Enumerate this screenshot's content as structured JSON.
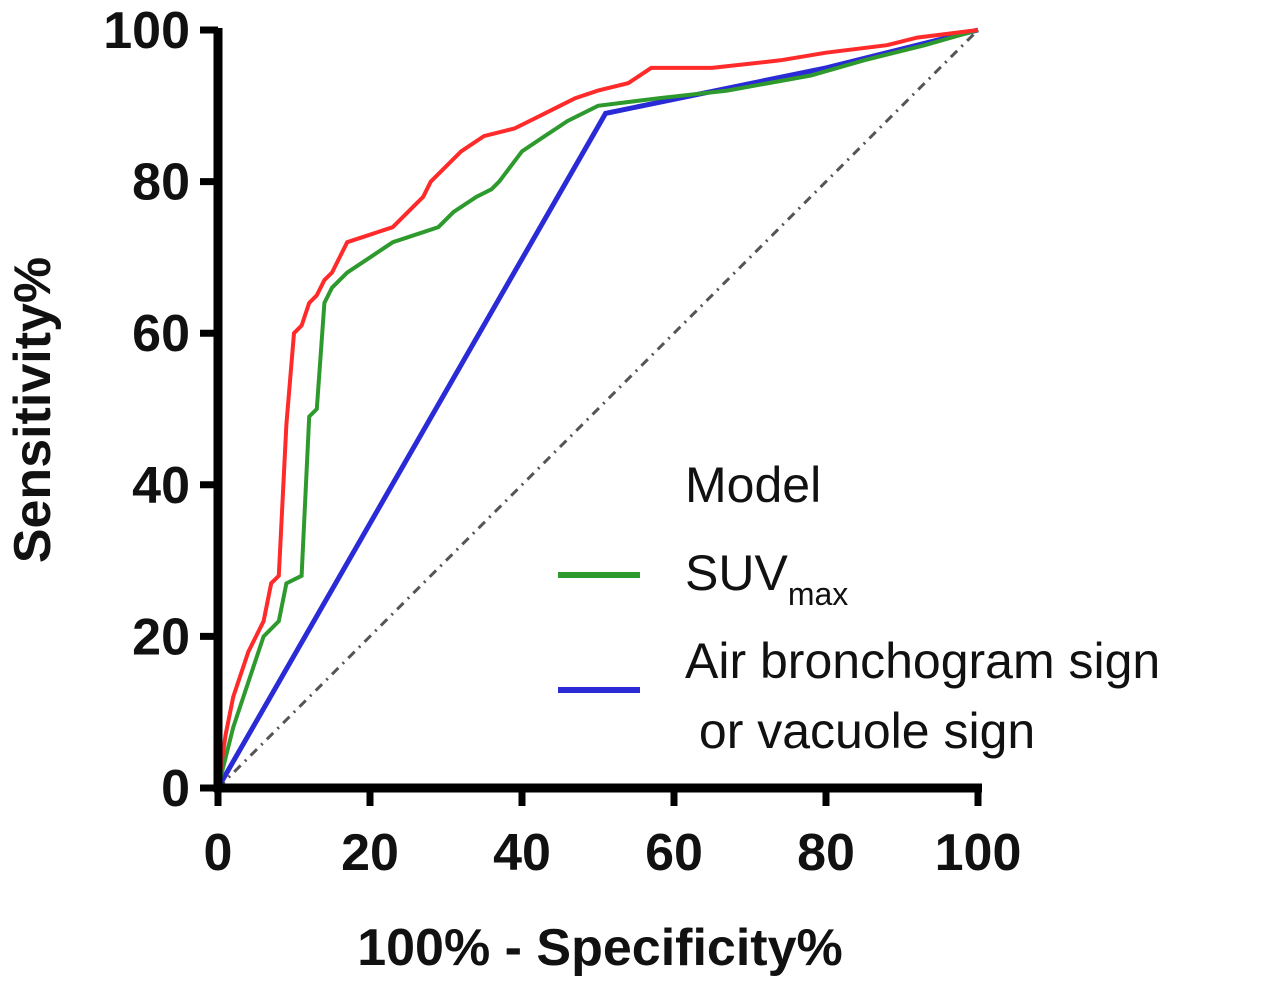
{
  "chart_data": {
    "type": "line",
    "title": "",
    "xlabel": "100% - Specificity%",
    "ylabel": "Sensitivity%",
    "xlim": [
      0,
      100
    ],
    "ylim": [
      0,
      100
    ],
    "xticks": [
      "0",
      "20",
      "40",
      "60",
      "80",
      "100"
    ],
    "yticks": [
      "0",
      "20",
      "40",
      "60",
      "80",
      "100"
    ],
    "grid": false,
    "legend_position": "bottom-right",
    "series": [
      {
        "name": "Model",
        "color": "#ff2a2a",
        "x": [
          0,
          1,
          2,
          3,
          4,
          4,
          6,
          6,
          7,
          8,
          8,
          9,
          9,
          10,
          10,
          11,
          11,
          12,
          12,
          13,
          13,
          14,
          14,
          15,
          15,
          16,
          16,
          17,
          17,
          20,
          20,
          23,
          23,
          25,
          25,
          27,
          27,
          28,
          28,
          30,
          30,
          32,
          32,
          35,
          35,
          39,
          39,
          41,
          41,
          43,
          43,
          45,
          45,
          47,
          47,
          50,
          50,
          54,
          54,
          57,
          57,
          65,
          65,
          74,
          74,
          80,
          80,
          88,
          88,
          92,
          92,
          100
        ],
        "y": [
          0,
          7,
          12,
          15,
          18,
          18,
          22,
          22,
          27,
          28,
          28,
          48,
          48,
          60,
          60,
          61,
          61,
          64,
          64,
          65,
          65,
          67,
          67,
          68,
          68,
          70,
          70,
          72,
          72,
          73,
          73,
          74,
          74,
          76,
          76,
          78,
          78,
          80,
          80,
          82,
          82,
          84,
          84,
          86,
          86,
          87,
          87,
          88,
          88,
          89,
          89,
          90,
          90,
          91,
          91,
          92,
          92,
          93,
          93,
          95,
          95,
          95,
          95,
          96,
          96,
          97,
          97,
          98,
          98,
          99,
          99,
          100
        ]
      },
      {
        "name": "SUVmax",
        "color": "#2e9a2e",
        "x": [
          0,
          2,
          4,
          5,
          5,
          6,
          6,
          8,
          8,
          9,
          9,
          11,
          11,
          12,
          12,
          13,
          13,
          14,
          14,
          15,
          15,
          17,
          17,
          20,
          20,
          23,
          23,
          26,
          26,
          29,
          29,
          31,
          31,
          34,
          34,
          36,
          36,
          37,
          37,
          40,
          40,
          43,
          43,
          46,
          46,
          50,
          50,
          58,
          58,
          67,
          67,
          78,
          78,
          85,
          85,
          93,
          93,
          100
        ],
        "y": [
          0,
          8,
          14,
          17,
          17,
          20,
          20,
          22,
          22,
          27,
          27,
          28,
          28,
          49,
          49,
          50,
          50,
          64,
          64,
          66,
          66,
          68,
          68,
          70,
          70,
          72,
          72,
          73,
          73,
          74,
          74,
          76,
          76,
          78,
          78,
          79,
          79,
          80,
          80,
          84,
          84,
          86,
          86,
          88,
          88,
          90,
          90,
          91,
          91,
          92,
          92,
          94,
          94,
          96,
          96,
          98,
          98,
          100
        ]
      },
      {
        "name": "Air bronchogram sign\n or vacuole sign",
        "color": "#2a2ad6",
        "x": [
          0,
          51,
          80,
          100
        ],
        "y": [
          0,
          89,
          95,
          100
        ]
      }
    ],
    "reference_line": {
      "x": [
        0,
        100
      ],
      "y": [
        0,
        100
      ],
      "color": "#555555",
      "style": "dashed"
    },
    "legend": {
      "title": "Model",
      "entries": [
        {
          "label_main": "SUV",
          "label_sub": "max",
          "color": "#2e9a2e"
        },
        {
          "label_line1": "Air bronchogram sign",
          "label_line2": " or vacuole sign",
          "color": "#2a2ad6"
        }
      ]
    }
  }
}
